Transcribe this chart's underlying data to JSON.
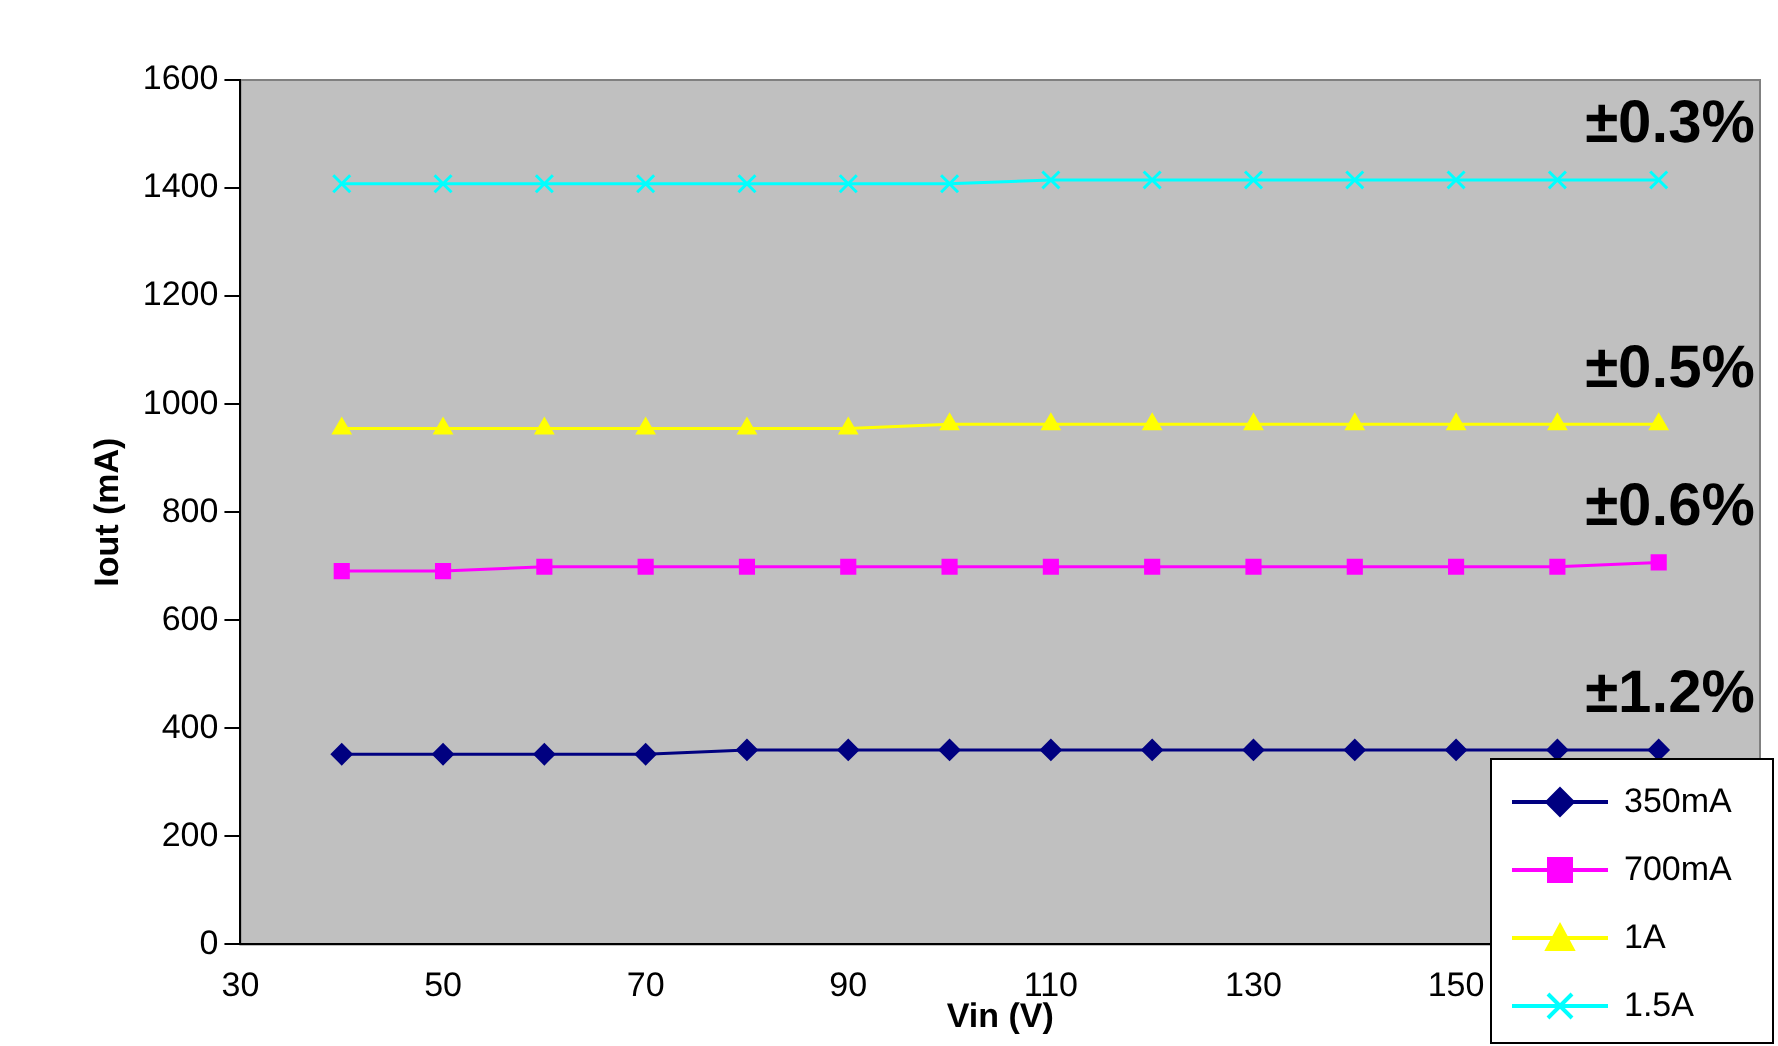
{
  "chart_data": {
    "type": "line",
    "xlabel": "Vin (V)",
    "ylabel": "Iout (mA)",
    "x": [
      40,
      50,
      60,
      70,
      80,
      90,
      100,
      110,
      120,
      130,
      140,
      150,
      160,
      170
    ],
    "xlim": [
      30,
      180
    ],
    "xticks": [
      30,
      50,
      70,
      90,
      110,
      130,
      150
    ],
    "ylim": [
      0,
      1600
    ],
    "yticks": [
      0,
      200,
      400,
      600,
      800,
      1000,
      1200,
      1400,
      1600
    ],
    "grid": false,
    "legend": "bottom right",
    "line_style": "solid",
    "series": [
      {
        "name": "350mA",
        "color": "#000080",
        "marker": "diamond",
        "values": [
          352,
          352,
          352,
          352,
          360,
          360,
          360,
          360,
          360,
          360,
          360,
          360,
          360,
          360
        ]
      },
      {
        "name": "700mA",
        "color": "#ff00ff",
        "marker": "square",
        "values": [
          691,
          691,
          699,
          699,
          699,
          699,
          699,
          699,
          699,
          699,
          699,
          699,
          699,
          707
        ]
      },
      {
        "name": "1A",
        "color": "#ffff00",
        "marker": "triangle",
        "values": [
          955,
          955,
          955,
          955,
          955,
          955,
          963,
          963,
          963,
          963,
          963,
          963,
          963,
          963
        ]
      },
      {
        "name": "1.5A",
        "color": "#00ffff",
        "marker": "cross",
        "values": [
          1408,
          1408,
          1408,
          1408,
          1408,
          1408,
          1408,
          1415,
          1415,
          1415,
          1415,
          1415,
          1415,
          1415
        ]
      }
    ],
    "annotations": [
      "±0.3%",
      "±0.5%",
      "±0.6%",
      "±1.2%"
    ]
  }
}
